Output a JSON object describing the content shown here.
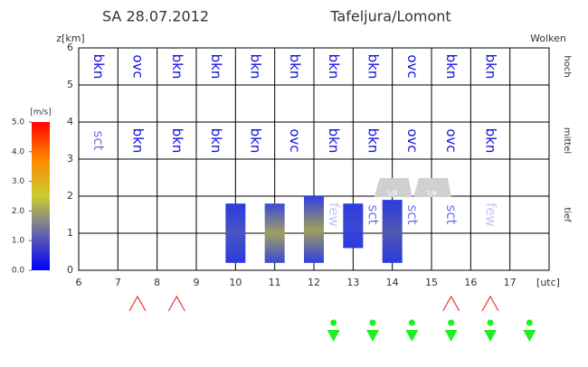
{
  "chart_data": {
    "type": "meteogram",
    "title": "SA 28.07.2012",
    "location": "Tafeljura/Lomont",
    "ylabel": "z[km]",
    "xlabel": "[utc]",
    "xlim": [
      6,
      18
    ],
    "xticks": [
      6,
      7,
      8,
      9,
      10,
      11,
      12,
      13,
      14,
      15,
      16,
      17
    ],
    "ylim": [
      0,
      6
    ],
    "yticks": [
      0,
      1,
      2,
      3,
      4,
      5,
      6
    ],
    "grid": true,
    "cloud_header": "Wolken",
    "label_colors": {
      "bkn": "#1010dd",
      "ovc": "#1010dd",
      "sct": "#7070ee",
      "few": "#c4c4f4"
    },
    "layers": [
      {
        "name": "hoch",
        "y": 5.5,
        "labels": [
          "bkn",
          "ovc",
          "bkn",
          "bkn",
          "bkn",
          "bkn",
          "bkn",
          "bkn",
          "ovc",
          "bkn",
          "bkn",
          null
        ]
      },
      {
        "name": "mittel",
        "y": 3.5,
        "labels": [
          "sct",
          "bkn",
          "bkn",
          "bkn",
          "bkn",
          "ovc",
          "bkn",
          "bkn",
          "ovc",
          "ovc",
          "bkn",
          null
        ]
      },
      {
        "name": "tief",
        "y": 1.5,
        "labels": [
          null,
          null,
          null,
          null,
          null,
          null,
          "few",
          "sct",
          "sct",
          "sct",
          "few",
          null
        ]
      }
    ],
    "bars": [
      {
        "x": 10,
        "bottom": 0.2,
        "top": 1.8,
        "color": "#2a3be0",
        "mid_color": "#4a55c0"
      },
      {
        "x": 11,
        "bottom": 0.2,
        "top": 1.8,
        "color": "#3a4ad8",
        "mid_color": "#a0a060"
      },
      {
        "x": 12,
        "bottom": 0.2,
        "top": 2.0,
        "color": "#3040e0",
        "mid_color": "#9ea05a"
      },
      {
        "x": 13,
        "bottom": 0.6,
        "top": 1.8,
        "color": "#2a3be0",
        "mid_color": "#3a48d0"
      },
      {
        "x": 14,
        "bottom": 0.2,
        "top": 1.9,
        "color": "#2a3be0",
        "mid_color": "#5058b0"
      }
    ],
    "cloud_icons": [
      {
        "x": 14,
        "label": "1/8"
      },
      {
        "x": 15,
        "label": "1/8"
      }
    ],
    "thermal_x": [
      7.5,
      8.5,
      15.5,
      16.5
    ],
    "arrow_x": [
      12.5,
      13.5,
      14.5,
      15.5,
      16.5,
      17.5
    ],
    "colorbar": {
      "label": "[m/s]",
      "lim": [
        0,
        5
      ],
      "ticks": [
        {
          "value": 0,
          "label": "0.0"
        },
        {
          "value": 1,
          "label": "1.0"
        },
        {
          "value": 2,
          "label": "2.0"
        },
        {
          "value": 3,
          "label": "3.0"
        },
        {
          "value": 4,
          "label": "4.0"
        },
        {
          "value": 5,
          "label": "5.0"
        }
      ],
      "colors": [
        "#0000ff",
        "#6666aa",
        "#cccc33",
        "#ff8800",
        "#ff0000"
      ]
    }
  }
}
